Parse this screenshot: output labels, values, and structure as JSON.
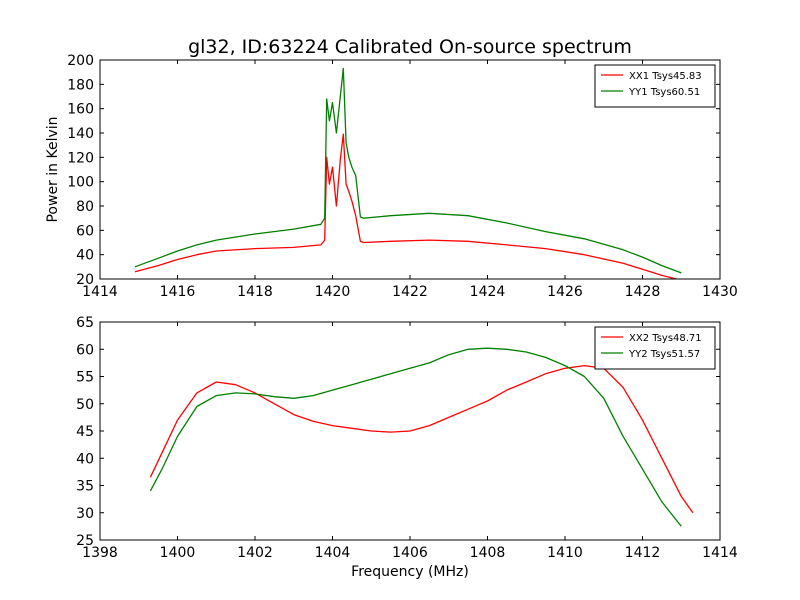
{
  "title": "gl32, ID:63224 Calibrated On-source spectrum",
  "chart_data": [
    {
      "type": "line",
      "ylabel": "Power in Kelvin",
      "xlabel": "",
      "xlim": [
        1414,
        1430
      ],
      "ylim": [
        20,
        200
      ],
      "xticks": [
        1414,
        1416,
        1418,
        1420,
        1422,
        1424,
        1426,
        1428,
        1430
      ],
      "yticks": [
        20,
        40,
        60,
        80,
        100,
        120,
        140,
        160,
        180,
        200
      ],
      "grid": false,
      "legend_position": "top-right",
      "series": [
        {
          "name": "XX1 Tsys45.83",
          "color": "#ff0000",
          "x": [
            1414.9,
            1415.5,
            1416.0,
            1416.5,
            1417.0,
            1418.0,
            1419.0,
            1419.7,
            1419.8,
            1419.85,
            1419.92,
            1420.0,
            1420.1,
            1420.2,
            1420.28,
            1420.35,
            1420.42,
            1420.5,
            1420.6,
            1420.72,
            1420.8,
            1421.5,
            1422.5,
            1423.5,
            1424.5,
            1425.5,
            1426.5,
            1427.5,
            1428.0,
            1428.5,
            1429.0
          ],
          "values": [
            26,
            31,
            36,
            40,
            43,
            45,
            46,
            48,
            52,
            120,
            98,
            112,
            80,
            118,
            139,
            98,
            92,
            84,
            72,
            51,
            50,
            51,
            52,
            51,
            48,
            45,
            40,
            33,
            28,
            23,
            19
          ]
        },
        {
          "name": "YY1 Tsys60.51",
          "color": "#008000",
          "x": [
            1414.9,
            1415.5,
            1416.0,
            1416.5,
            1417.0,
            1418.0,
            1419.0,
            1419.7,
            1419.8,
            1419.85,
            1419.92,
            1420.0,
            1420.1,
            1420.2,
            1420.28,
            1420.35,
            1420.42,
            1420.5,
            1420.6,
            1420.72,
            1420.8,
            1421.5,
            1422.5,
            1423.5,
            1424.5,
            1425.5,
            1426.5,
            1427.5,
            1428.0,
            1428.5,
            1429.0
          ],
          "values": [
            30,
            37,
            43,
            48,
            52,
            57,
            61,
            65,
            70,
            168,
            150,
            165,
            140,
            170,
            193,
            132,
            120,
            112,
            105,
            71,
            70,
            72,
            74,
            72,
            66,
            59,
            53,
            44,
            38,
            31,
            25
          ]
        }
      ]
    },
    {
      "type": "line",
      "xlabel": "Frequency (MHz)",
      "ylabel": "",
      "xlim": [
        1398,
        1414
      ],
      "ylim": [
        25,
        65
      ],
      "xticks": [
        1398,
        1400,
        1402,
        1404,
        1406,
        1408,
        1410,
        1412,
        1414
      ],
      "yticks": [
        25,
        30,
        35,
        40,
        45,
        50,
        55,
        60,
        65
      ],
      "grid": false,
      "legend_position": "top-right",
      "series": [
        {
          "name": "XX2 Tsys48.71",
          "color": "#ff0000",
          "x": [
            1399.3,
            1399.6,
            1400.0,
            1400.5,
            1401.0,
            1401.5,
            1402.0,
            1402.5,
            1403.0,
            1403.5,
            1404.0,
            1404.5,
            1405.0,
            1405.5,
            1406.0,
            1406.5,
            1407.0,
            1407.5,
            1408.0,
            1408.5,
            1409.0,
            1409.5,
            1410.0,
            1410.5,
            1411.0,
            1411.5,
            1412.0,
            1412.5,
            1413.0,
            1413.3
          ],
          "values": [
            36.5,
            41,
            47,
            52,
            54,
            53.5,
            52,
            50,
            48,
            46.8,
            46,
            45.5,
            45,
            44.8,
            45,
            46,
            47.5,
            49,
            50.5,
            52.5,
            54,
            55.5,
            56.5,
            57,
            56.5,
            53,
            47,
            40,
            33,
            30
          ]
        },
        {
          "name": "YY2 Tsys51.57",
          "color": "#008000",
          "x": [
            1399.3,
            1399.6,
            1400.0,
            1400.5,
            1401.0,
            1401.5,
            1402.0,
            1402.5,
            1403.0,
            1403.5,
            1404.0,
            1404.5,
            1405.0,
            1405.5,
            1406.0,
            1406.5,
            1407.0,
            1407.5,
            1408.0,
            1408.5,
            1409.0,
            1409.5,
            1410.0,
            1410.5,
            1411.0,
            1411.5,
            1412.0,
            1412.5,
            1413.0
          ],
          "values": [
            34,
            38,
            44,
            49.5,
            51.5,
            52,
            51.8,
            51.3,
            51,
            51.5,
            52.5,
            53.5,
            54.5,
            55.5,
            56.5,
            57.5,
            59,
            60,
            60.2,
            60,
            59.5,
            58.5,
            57,
            55,
            51,
            44,
            38,
            32,
            27.5
          ]
        }
      ]
    }
  ]
}
